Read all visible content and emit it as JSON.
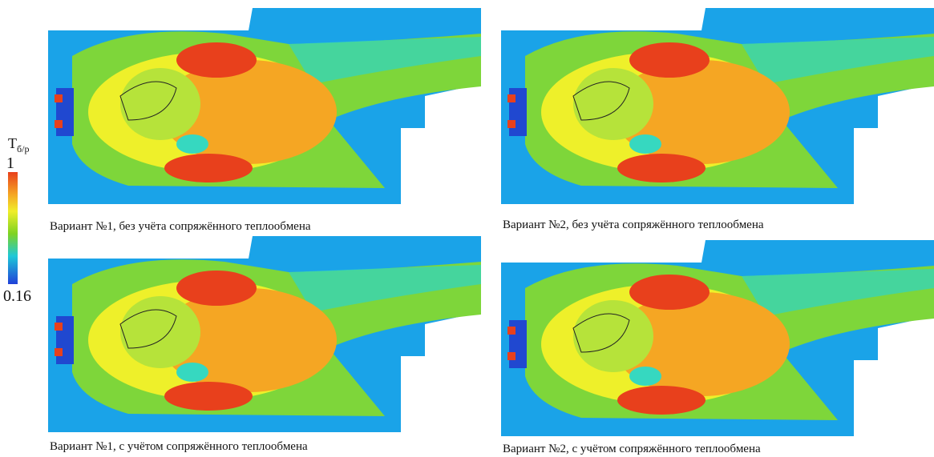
{
  "colorbar": {
    "title": "T",
    "title_sub": "б/р",
    "max": 1,
    "min": 0.16
  },
  "panels": [
    {
      "caption": "Вариант №1, без учёта сопряжённого теплообмена"
    },
    {
      "caption": "Вариант №2, без учёта сопряжённого теплообмена"
    },
    {
      "caption": "Вариант №1, с учётом сопряжённого теплообмена"
    },
    {
      "caption": "Вариант №2, с учётом сопряжённого теплообмена"
    }
  ]
}
